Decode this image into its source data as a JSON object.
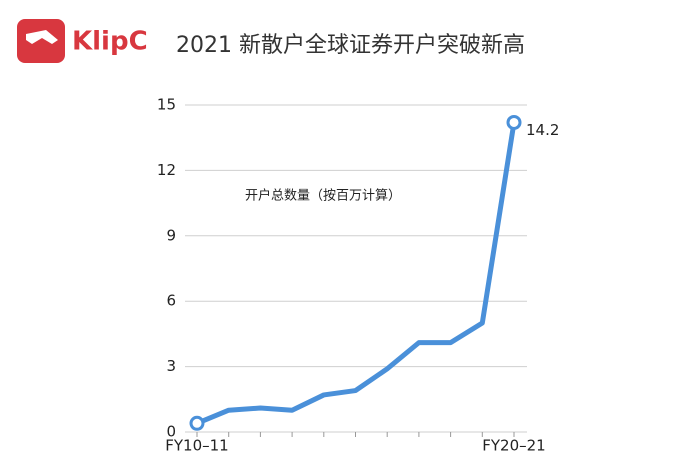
{
  "header": {
    "logo": "KlipC"
  },
  "chart_data": {
    "type": "line",
    "title": "2021 新散户全球证券开户突破新高",
    "annotation": "开户总数量（按百万计算）",
    "categories": [
      "FY10–11",
      null,
      null,
      null,
      null,
      null,
      null,
      null,
      null,
      null,
      "FY20–21"
    ],
    "values": [
      0.4,
      1.0,
      1.1,
      1.0,
      1.7,
      1.9,
      2.9,
      4.1,
      4.1,
      5.0,
      14.2
    ],
    "color": "#4a90d9",
    "ylim": [
      0,
      15
    ],
    "yticks": [
      0,
      3,
      6,
      9,
      12,
      15
    ],
    "grid": true
  }
}
